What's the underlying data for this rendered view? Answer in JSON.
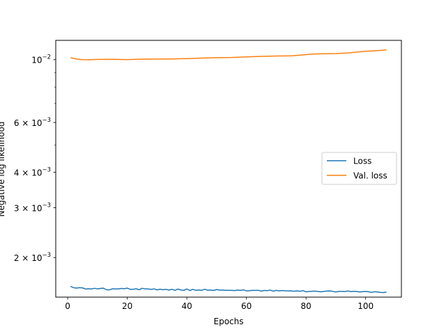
{
  "chart_data": {
    "type": "line",
    "xlabel": "Epochs",
    "ylabel": "Negative log likelihood",
    "yscale": "log",
    "xlim": [
      -4,
      112
    ],
    "ylim": [
      0.00145,
      0.0117
    ],
    "grid": false,
    "legend_position": "center-right",
    "x_ticks": [
      0,
      20,
      40,
      60,
      80,
      100
    ],
    "x_tick_labels": [
      "0",
      "20",
      "40",
      "60",
      "80",
      "100"
    ],
    "y_ticks": [
      0.01,
      0.006,
      0.004,
      0.003,
      0.002
    ],
    "y_tick_labels": [
      {
        "base": "10",
        "exp": "−2",
        "mant": ""
      },
      {
        "base": "10",
        "exp": "−3",
        "mant": "6"
      },
      {
        "base": "10",
        "exp": "−3",
        "mant": "4"
      },
      {
        "base": "10",
        "exp": "−3",
        "mant": "3"
      },
      {
        "base": "10",
        "exp": "−3",
        "mant": "2"
      }
    ],
    "series": [
      {
        "name": "Loss",
        "color": "#1f77b4",
        "x": [
          1,
          2,
          3,
          4,
          5,
          6,
          7,
          8,
          9,
          10,
          11,
          12,
          13,
          14,
          15,
          16,
          17,
          18,
          19,
          20,
          21,
          22,
          23,
          24,
          25,
          26,
          27,
          28,
          29,
          30,
          31,
          32,
          33,
          34,
          35,
          36,
          37,
          38,
          39,
          40,
          41,
          42,
          43,
          44,
          45,
          46,
          47,
          48,
          49,
          50,
          51,
          52,
          53,
          54,
          55,
          56,
          57,
          58,
          59,
          60,
          61,
          62,
          63,
          64,
          65,
          66,
          67,
          68,
          69,
          70,
          71,
          72,
          73,
          74,
          75,
          76,
          77,
          78,
          79,
          80,
          81,
          82,
          83,
          84,
          85,
          86,
          87,
          88,
          89,
          90,
          91,
          92,
          93,
          94,
          95,
          96,
          97,
          98,
          99,
          100,
          101,
          102,
          103,
          104,
          105,
          106,
          107
        ],
        "values": [
          0.001582,
          0.001565,
          0.001561,
          0.001566,
          0.001563,
          0.001548,
          0.001552,
          0.001549,
          0.001558,
          0.00155,
          0.001556,
          0.00156,
          0.00154,
          0.001538,
          0.001551,
          0.001549,
          0.00155,
          0.001556,
          0.001553,
          0.00156,
          0.001545,
          0.001546,
          0.001552,
          0.00154,
          0.001558,
          0.00155,
          0.00155,
          0.001544,
          0.00155,
          0.001538,
          0.001547,
          0.00154,
          0.001545,
          0.001535,
          0.001546,
          0.001532,
          0.001548,
          0.001536,
          0.001532,
          0.001549,
          0.00153,
          0.001545,
          0.001533,
          0.001537,
          0.001533,
          0.001546,
          0.001534,
          0.001535,
          0.001531,
          0.001542,
          0.001534,
          0.001537,
          0.001532,
          0.001533,
          0.001532,
          0.001529,
          0.001535,
          0.001533,
          0.001538,
          0.001525,
          0.001528,
          0.001532,
          0.001531,
          0.001533,
          0.001522,
          0.001531,
          0.001528,
          0.001535,
          0.001522,
          0.001531,
          0.001526,
          0.00153,
          0.001527,
          0.001525,
          0.001526,
          0.001521,
          0.001526,
          0.001521,
          0.001528,
          0.001514,
          0.001518,
          0.001521,
          0.001522,
          0.001518,
          0.001514,
          0.001519,
          0.001523,
          0.001525,
          0.001519,
          0.001512,
          0.00152,
          0.001519,
          0.001518,
          0.001524,
          0.001517,
          0.001521,
          0.001518,
          0.001512,
          0.001516,
          0.001519,
          0.001514,
          0.001508,
          0.001515,
          0.001512,
          0.001506,
          0.001504,
          0.00151
        ]
      },
      {
        "name": "Val. loss",
        "color": "#ff7f0e",
        "x": [
          1,
          3,
          5,
          7,
          10,
          15,
          20,
          25,
          30,
          35,
          40,
          45,
          50,
          55,
          60,
          65,
          70,
          75,
          78,
          82,
          86,
          90,
          94,
          97,
          100,
          104,
          107
        ],
        "values": [
          0.010165,
          0.01005,
          0.009995,
          0.00999,
          0.01002,
          0.01003,
          0.01001,
          0.01004,
          0.01005,
          0.01006,
          0.01009,
          0.01013,
          0.01016,
          0.01018,
          0.01023,
          0.01027,
          0.0103,
          0.01032,
          0.01037,
          0.01046,
          0.01049,
          0.01051,
          0.01056,
          0.01063,
          0.01071,
          0.01076,
          0.01082
        ]
      }
    ]
  }
}
